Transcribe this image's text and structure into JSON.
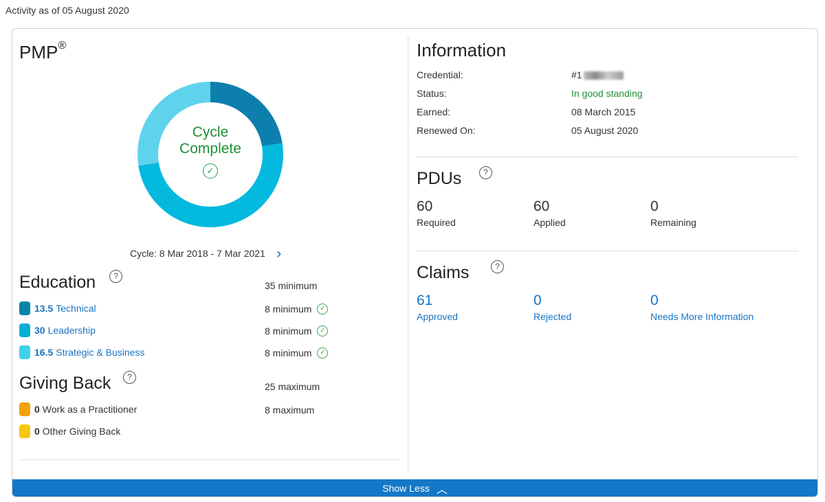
{
  "header": {
    "activity_text": "Activity as of 05 August 2020"
  },
  "certification": {
    "name": "PMP",
    "mark": "®",
    "cycle_status_line1": "Cycle",
    "cycle_status_line2": "Complete",
    "cycle_range": "Cycle: 8 Mar 2018 - 7 Mar 2021"
  },
  "chart_data": {
    "type": "pie",
    "donut": true,
    "categories": [
      "Technical",
      "Leadership",
      "Strategic & Business"
    ],
    "values": [
      13.5,
      30,
      16.5
    ],
    "colors": [
      "#0d7fad",
      "#04b9de",
      "#5fd3ec"
    ]
  },
  "education": {
    "title": "Education",
    "requirement": "35 minimum",
    "items": [
      {
        "value": "13.5",
        "label": "Technical",
        "requirement": "8 minimum",
        "color": "#0a85a6"
      },
      {
        "value": "30",
        "label": "Leadership",
        "requirement": "8 minimum",
        "color": "#09b0d3"
      },
      {
        "value": "16.5",
        "label": "Strategic & Business",
        "requirement": "8 minimum",
        "color": "#3ed2ea"
      }
    ]
  },
  "giving_back": {
    "title": "Giving Back",
    "requirement": "25 maximum",
    "items": [
      {
        "value": "0",
        "label": "Work as a Practitioner",
        "requirement": "8 maximum",
        "color": "#f2a20a"
      },
      {
        "value": "0",
        "label": "Other Giving Back",
        "requirement": "",
        "color": "#f7c812"
      }
    ]
  },
  "information": {
    "title": "Information",
    "rows": [
      {
        "label": "Credential:",
        "value": "#1"
      },
      {
        "label": "Status:",
        "value": "In good standing"
      },
      {
        "label": "Earned:",
        "value": "08 March 2015"
      },
      {
        "label": "Renewed On:",
        "value": "05 August 2020"
      }
    ]
  },
  "pdus": {
    "title": "PDUs",
    "stats": [
      {
        "value": "60",
        "label": "Required"
      },
      {
        "value": "60",
        "label": "Applied"
      },
      {
        "value": "0",
        "label": "Remaining"
      }
    ]
  },
  "claims": {
    "title": "Claims",
    "stats": [
      {
        "value": "61",
        "label": "Approved"
      },
      {
        "value": "0",
        "label": "Rejected"
      },
      {
        "value": "0",
        "label": "Needs More Information"
      }
    ]
  },
  "footer": {
    "show_less_label": "Show Less"
  }
}
